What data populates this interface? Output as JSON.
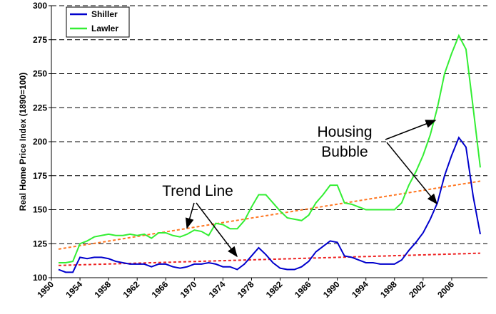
{
  "chart_data": {
    "type": "line",
    "y_label": "Real Home Price Index (1890=100)",
    "x": [
      1951,
      1952,
      1953,
      1954,
      1955,
      1956,
      1957,
      1958,
      1959,
      1960,
      1961,
      1962,
      1963,
      1964,
      1965,
      1966,
      1967,
      1968,
      1969,
      1970,
      1971,
      1972,
      1973,
      1974,
      1975,
      1976,
      1977,
      1978,
      1979,
      1980,
      1981,
      1982,
      1983,
      1984,
      1985,
      1986,
      1987,
      1988,
      1989,
      1990,
      1991,
      1992,
      1993,
      1994,
      1995,
      1996,
      1997,
      1998,
      1999,
      2000,
      2001,
      2002,
      2003,
      2004,
      2005,
      2006,
      2007,
      2008,
      2009,
      2010
    ],
    "series": [
      {
        "name": "Shiller",
        "color": "#0000cc",
        "values": [
          106,
          104,
          104,
          115,
          114,
          115,
          115,
          114,
          112,
          111,
          110,
          110,
          110,
          108,
          110,
          110,
          108,
          107,
          108,
          110,
          110,
          111,
          110,
          108,
          108,
          106,
          110,
          116,
          122,
          117,
          111,
          107,
          106,
          106,
          108,
          112,
          119,
          123,
          127,
          126,
          116,
          115,
          113,
          111,
          111,
          110,
          110,
          110,
          113,
          120,
          126,
          133,
          143,
          155,
          175,
          190,
          203,
          196,
          160,
          132
        ]
      },
      {
        "name": "Lawler",
        "color": "#33ee33",
        "values": [
          111,
          111,
          112,
          125,
          127,
          130,
          131,
          132,
          131,
          131,
          132,
          131,
          132,
          129,
          133,
          133,
          131,
          130,
          132,
          135,
          134,
          131,
          140,
          139,
          136,
          136,
          142,
          152,
          161,
          161,
          155,
          149,
          144,
          143,
          142,
          146,
          155,
          161,
          168,
          168,
          155,
          154,
          152,
          150,
          150,
          150,
          150,
          150,
          155,
          168,
          178,
          190,
          205,
          225,
          250,
          265,
          278,
          268,
          225,
          181
        ]
      }
    ],
    "trend_lines": [
      {
        "x": [
          1951,
          2010
        ],
        "values": [
          121,
          171
        ],
        "color": "#ff7722"
      },
      {
        "x": [
          1951,
          2010
        ],
        "values": [
          109,
          118
        ],
        "color": "#ee2222"
      }
    ],
    "annotations": [
      "Housing",
      "Bubble",
      "Trend Line"
    ],
    "xlim": [
      1950,
      2011
    ],
    "xticks": [
      1950,
      1954,
      1958,
      1962,
      1966,
      1970,
      1974,
      1978,
      1982,
      1986,
      1990,
      1994,
      1998,
      2002,
      2006
    ],
    "ylim": [
      100,
      300
    ],
    "yticks": [
      100,
      125,
      150,
      175,
      200,
      225,
      250,
      275,
      300
    ],
    "grid": true
  }
}
